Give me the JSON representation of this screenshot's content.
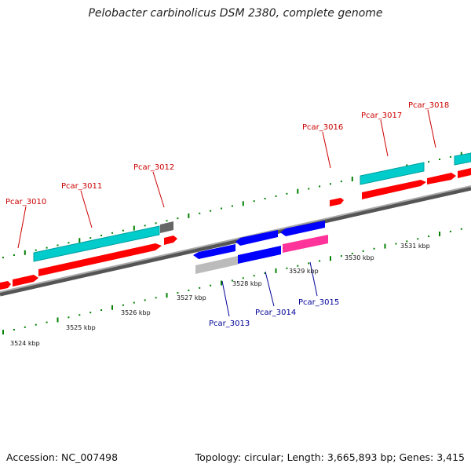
{
  "title": "Pelobacter carbinolicus DSM 2380, complete genome",
  "footer": {
    "accession": "Accession: NC_007498",
    "summary": "Topology: circular; Length: 3,665,893 bp; Genes: 3,415"
  },
  "colors": {
    "forward_gene": "#ff0000",
    "reverse_gene": "#0000ff",
    "forward_cds": "#00cccc",
    "pseudo_gene": "#bbbbbb",
    "rna_gene": "#ff3399",
    "unknown_gene": "#666666",
    "ticks": "#008000",
    "forward_label": "#cc0000",
    "reverse_label": "#000099",
    "backbone": "#888888"
  },
  "ticks": [
    "3524 kbp",
    "3525 kbp",
    "3526 kbp",
    "3527 kbp",
    "3528 kbp",
    "3529 kbp",
    "3530 kbp",
    "3531 kbp"
  ],
  "gene_labels": {
    "forward": [
      "Pcar_3010",
      "Pcar_3011",
      "Pcar_3012",
      "Pcar_3016",
      "Pcar_3017",
      "Pcar_3018"
    ],
    "reverse": [
      "Pcar_3013",
      "Pcar_3014",
      "Pcar_3015"
    ]
  }
}
